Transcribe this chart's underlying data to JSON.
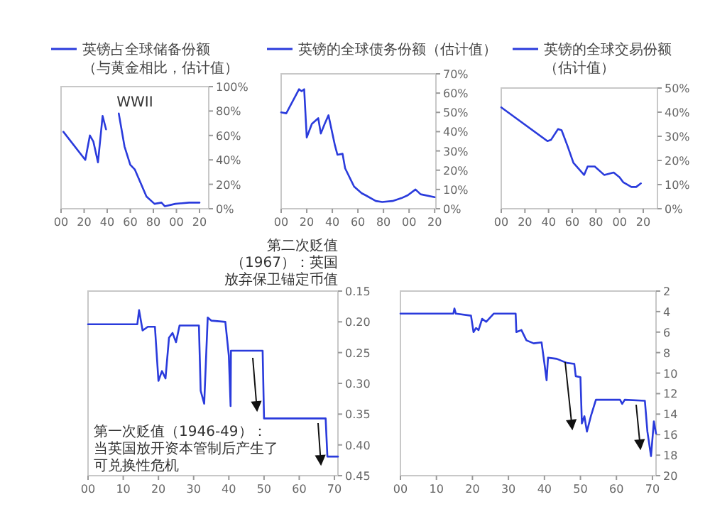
{
  "chart_data": [
    {
      "type": "line",
      "legend": "top",
      "x": [
        1902,
        1921,
        1925,
        1928,
        1932,
        1936,
        1939,
        1944,
        1950,
        1955,
        1960,
        1964,
        1974,
        1981,
        1987,
        1990,
        1999,
        2011,
        2020
      ],
      "series": [
        {
          "name": "英镑占全球储备份额（与黄金相比，估计值）",
          "color": "#2a3bdc",
          "values": [
            63,
            40,
            60,
            55,
            38,
            76,
            65,
            null,
            78,
            51,
            36,
            32,
            10,
            4,
            5,
            2,
            4,
            5,
            5
          ]
        }
      ],
      "xlim": [
        1900,
        2028
      ],
      "ylim": [
        0,
        100
      ],
      "xticks": [
        {
          "value": 1900,
          "label": "00"
        },
        {
          "value": 1920,
          "label": "20"
        },
        {
          "value": 1940,
          "label": "40"
        },
        {
          "value": 1960,
          "label": "60"
        },
        {
          "value": 1980,
          "label": "80"
        },
        {
          "value": 2000,
          "label": "00"
        },
        {
          "value": 2020,
          "label": "20"
        }
      ],
      "yticks": [
        {
          "value": 0,
          "label": "0%"
        },
        {
          "value": 20,
          "label": "20%"
        },
        {
          "value": 40,
          "label": "40%"
        },
        {
          "value": 60,
          "label": "60%"
        },
        {
          "value": 80,
          "label": "80%"
        },
        {
          "value": 100,
          "label": "100%"
        }
      ],
      "annotations": [
        "WWII"
      ]
    },
    {
      "type": "line",
      "legend": "top",
      "x": [
        1900,
        1904,
        1914,
        1916,
        1918,
        1920,
        1924,
        1929,
        1931,
        1934,
        1937,
        1942,
        1944,
        1948,
        1950,
        1957,
        1963,
        1966,
        1974,
        1979,
        1987,
        1994,
        1999,
        2005,
        2009,
        2020
      ],
      "series": [
        {
          "name": "英镑的全球债务份额（估计值）",
          "color": "#2a3bdc",
          "values": [
            50,
            49.5,
            62,
            61,
            62,
            37,
            44,
            47,
            39,
            44,
            48.5,
            33,
            28,
            28.5,
            21,
            11.5,
            8,
            7,
            4,
            3.5,
            4,
            5.5,
            7,
            10,
            7.5,
            6
          ]
        }
      ],
      "xlim": [
        1900,
        2021
      ],
      "ylim": [
        0,
        70
      ],
      "xticks": [
        {
          "value": 1900,
          "label": "00"
        },
        {
          "value": 1920,
          "label": "20"
        },
        {
          "value": 1940,
          "label": "40"
        },
        {
          "value": 1960,
          "label": "60"
        },
        {
          "value": 1980,
          "label": "80"
        },
        {
          "value": 2000,
          "label": "00"
        },
        {
          "value": 2020,
          "label": "20"
        }
      ],
      "yticks": [
        {
          "value": 0,
          "label": "0%"
        },
        {
          "value": 10,
          "label": "10%"
        },
        {
          "value": 20,
          "label": "20%"
        },
        {
          "value": 30,
          "label": "30%"
        },
        {
          "value": 40,
          "label": "40%"
        },
        {
          "value": 50,
          "label": "50%"
        },
        {
          "value": 60,
          "label": "60%"
        },
        {
          "value": 70,
          "label": "70%"
        }
      ]
    },
    {
      "type": "line",
      "legend": "top",
      "x": [
        1900,
        1939,
        1942,
        1948,
        1951,
        1956,
        1961,
        1970,
        1973,
        1979,
        1987,
        1995,
        2000,
        2003,
        2010,
        2014,
        2018
      ],
      "series": [
        {
          "name": "英镑的全球交易份额（估计值）",
          "color": "#2a3bdc",
          "values": [
            42,
            28,
            28.5,
            33,
            32.5,
            26,
            19,
            14,
            17.5,
            17.5,
            14,
            15,
            13,
            11,
            9,
            9,
            10.5
          ]
        }
      ],
      "xlim": [
        1900,
        2032
      ],
      "ylim": [
        0,
        50
      ],
      "xticks": [
        {
          "value": 1900,
          "label": "00"
        },
        {
          "value": 1920,
          "label": "20"
        },
        {
          "value": 1940,
          "label": "40"
        },
        {
          "value": 1960,
          "label": "60"
        },
        {
          "value": 1980,
          "label": "80"
        },
        {
          "value": 2000,
          "label": "00"
        },
        {
          "value": 2020,
          "label": "20"
        }
      ],
      "yticks": [
        {
          "value": 0,
          "label": "0%"
        },
        {
          "value": 10,
          "label": "10%"
        },
        {
          "value": 20,
          "label": "20%"
        },
        {
          "value": 30,
          "label": "30%"
        },
        {
          "value": 40,
          "label": "40%"
        },
        {
          "value": 50,
          "label": "50%"
        }
      ]
    },
    {
      "type": "line",
      "x": [
        1900,
        1914,
        1914.5,
        1915.5,
        1917,
        1919,
        1920,
        1921,
        1922,
        1923,
        1924,
        1925,
        1926,
        1931.5,
        1932,
        1933,
        1934,
        1935,
        1939,
        1940,
        1940.5,
        1940.6,
        1949.6,
        1950,
        1967.5,
        1968,
        1971
      ],
      "series": [
        {
          "color": "#2a3bdc",
          "values": [
            0.204,
            0.204,
            0.181,
            0.214,
            0.208,
            0.208,
            0.296,
            0.28,
            0.292,
            0.226,
            0.218,
            0.233,
            0.206,
            0.206,
            0.312,
            0.333,
            0.193,
            0.198,
            0.2,
            0.255,
            0.337,
            0.247,
            0.247,
            0.357,
            0.357,
            0.419,
            0.419
          ]
        }
      ],
      "xlim": [
        1900,
        1971
      ],
      "ylim": [
        0.45,
        0.15
      ],
      "xticks": [
        {
          "value": 1900,
          "label": "00"
        },
        {
          "value": 1910,
          "label": "10"
        },
        {
          "value": 1920,
          "label": "20"
        },
        {
          "value": 1930,
          "label": "30"
        },
        {
          "value": 1940,
          "label": "40"
        },
        {
          "value": 1950,
          "label": "50"
        },
        {
          "value": 1960,
          "label": "60"
        },
        {
          "value": 1970,
          "label": "70"
        }
      ],
      "yticks": [
        0.15,
        {
          "value": 0.2,
          "label": "0.20"
        },
        0.25,
        {
          "value": 0.3,
          "label": "0.30"
        },
        0.35,
        {
          "value": 0.4,
          "label": "0.40"
        },
        0.45
      ],
      "annotations": [
        "第二次贬值（1967）：英国放弃保卫锚定币值",
        "第一次贬值（1946-49）：当英国放开资本管制后产生了可兑换性危机"
      ]
    },
    {
      "type": "line",
      "x": [
        1900,
        1914.7,
        1915,
        1915.4,
        1919.6,
        1920.3,
        1921,
        1921.7,
        1922.7,
        1923.8,
        1925.9,
        1932,
        1932.2,
        1933.6,
        1935,
        1937,
        1939.2,
        1939.9,
        1940.6,
        1941,
        1943.4,
        1946.2,
        1948.3,
        1948.7,
        1950,
        1950.4,
        1951.1,
        1951.8,
        1952.9,
        1954.3,
        1956,
        1961,
        1961.6,
        1962.3,
        1967.9,
        1968.6,
        1969.6,
        1970.4,
        1971
      ],
      "series": [
        {
          "color": "#2a3bdc",
          "values": [
            4.2,
            4.2,
            3.7,
            4.2,
            4.4,
            6,
            5.6,
            5.8,
            4.7,
            5,
            4.2,
            4.2,
            6,
            5.8,
            6.8,
            7.1,
            7,
            8.8,
            10.7,
            8.5,
            8.6,
            9,
            9.1,
            10.3,
            10.4,
            14.9,
            14.2,
            15.7,
            14.2,
            12.6,
            12.6,
            12.6,
            13,
            12.6,
            12.7,
            15.7,
            18.1,
            14.7,
            15.9
          ]
        }
      ],
      "xlim": [
        1900,
        1971
      ],
      "ylim": [
        20,
        2
      ],
      "xticks": [
        {
          "value": 1900,
          "label": "00"
        },
        {
          "value": 1910,
          "label": "10"
        },
        {
          "value": 1920,
          "label": "20"
        },
        {
          "value": 1930,
          "label": "30"
        },
        {
          "value": 1940,
          "label": "40"
        },
        {
          "value": 1950,
          "label": "50"
        },
        {
          "value": 1960,
          "label": "60"
        },
        {
          "value": 1970,
          "label": "70"
        }
      ],
      "yticks": [
        2,
        4,
        6,
        8,
        10,
        12,
        14,
        16,
        18,
        20
      ]
    }
  ]
}
